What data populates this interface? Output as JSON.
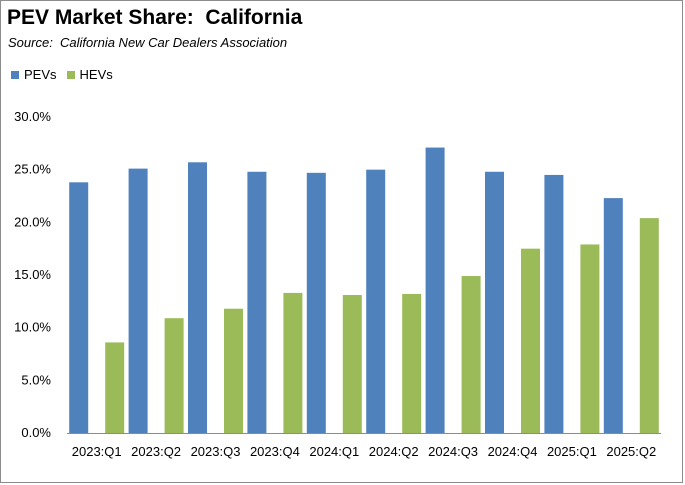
{
  "title": "PEV Market Share:  California",
  "subtitle": "Source:  California New Car Dealers Association",
  "chart_data": {
    "type": "bar",
    "categories": [
      "2023:Q1",
      "2023:Q2",
      "2023:Q3",
      "2023:Q4",
      "2024:Q1",
      "2024:Q2",
      "2024:Q3",
      "2024:Q4",
      "2025:Q1",
      "2025:Q2"
    ],
    "series": [
      {
        "name": "PEVs",
        "color": "#4f81bd",
        "values": [
          23.8,
          25.1,
          25.7,
          24.8,
          24.7,
          25.0,
          27.1,
          24.8,
          24.5,
          22.3
        ]
      },
      {
        "name": "HEVs",
        "color": "#9bbb59",
        "values": [
          8.6,
          10.9,
          11.8,
          13.3,
          13.1,
          13.2,
          14.9,
          17.5,
          17.9,
          20.4
        ]
      }
    ],
    "ylim": [
      0,
      30
    ],
    "yticks": [
      "0.0%",
      "5.0%",
      "10.0%",
      "15.0%",
      "20.0%",
      "25.0%",
      "30.0%"
    ],
    "ytick_values": [
      0,
      5,
      10,
      15,
      20,
      25,
      30
    ],
    "xlabel": "",
    "ylabel": "",
    "grid": false,
    "legend_position": "top-left"
  }
}
